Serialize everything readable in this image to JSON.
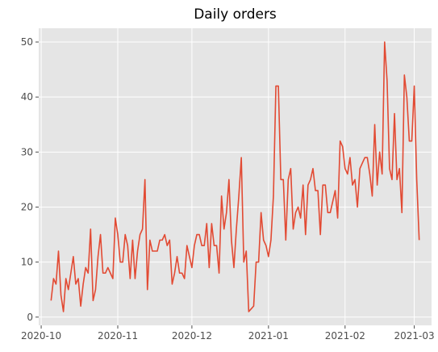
{
  "colors": {
    "plot_background": "#e5e5e5",
    "grid": "#ffffff",
    "line": "#e24a33",
    "tick_text": "#4d4d4d"
  },
  "chart_data": {
    "type": "line",
    "title": "Daily orders",
    "xlabel": "",
    "ylabel": "",
    "grid": true,
    "x_axis": {
      "type": "date",
      "range": [
        "2020-09-30",
        "2021-03-08"
      ],
      "ticks": [
        {
          "date": "2020-10-01",
          "label": "2020-10"
        },
        {
          "date": "2020-11-01",
          "label": "2020-11"
        },
        {
          "date": "2020-12-01",
          "label": "2020-12"
        },
        {
          "date": "2021-01-01",
          "label": "2021-01"
        },
        {
          "date": "2021-02-01",
          "label": "2021-02"
        },
        {
          "date": "2021-03-01",
          "label": "2021-03"
        }
      ]
    },
    "y_axis": {
      "range": [
        -1.5,
        52.5
      ],
      "ticks": [
        0,
        10,
        20,
        30,
        40,
        50
      ]
    },
    "start_date": "2020-10-05",
    "x": [
      "2020-10-05",
      "2020-10-06",
      "2020-10-07",
      "2020-10-08",
      "2020-10-09",
      "2020-10-10",
      "2020-10-11",
      "2020-10-12",
      "2020-10-13",
      "2020-10-14",
      "2020-10-15",
      "2020-10-16",
      "2020-10-17",
      "2020-10-18",
      "2020-10-19",
      "2020-10-20",
      "2020-10-21",
      "2020-10-22",
      "2020-10-23",
      "2020-10-24",
      "2020-10-25",
      "2020-10-26",
      "2020-10-27",
      "2020-10-28",
      "2020-10-29",
      "2020-10-30",
      "2020-10-31",
      "2020-11-01",
      "2020-11-02",
      "2020-11-03",
      "2020-11-04",
      "2020-11-05",
      "2020-11-06",
      "2020-11-07",
      "2020-11-08",
      "2020-11-09",
      "2020-11-10",
      "2020-11-11",
      "2020-11-12",
      "2020-11-13",
      "2020-11-14",
      "2020-11-15",
      "2020-11-16",
      "2020-11-17",
      "2020-11-18",
      "2020-11-19",
      "2020-11-20",
      "2020-11-21",
      "2020-11-22",
      "2020-11-23",
      "2020-11-24",
      "2020-11-25",
      "2020-11-26",
      "2020-11-27",
      "2020-11-28",
      "2020-11-29",
      "2020-11-30",
      "2020-12-01",
      "2020-12-02",
      "2020-12-03",
      "2020-12-04",
      "2020-12-05",
      "2020-12-06",
      "2020-12-07",
      "2020-12-08",
      "2020-12-09",
      "2020-12-10",
      "2020-12-11",
      "2020-12-12",
      "2020-12-13",
      "2020-12-14",
      "2020-12-15",
      "2020-12-16",
      "2020-12-17",
      "2020-12-18",
      "2020-12-19",
      "2020-12-20",
      "2020-12-21",
      "2020-12-22",
      "2020-12-23",
      "2020-12-24",
      "2020-12-25",
      "2020-12-26",
      "2020-12-27",
      "2020-12-28",
      "2020-12-29",
      "2020-12-30",
      "2020-12-31",
      "2021-01-01",
      "2021-01-02",
      "2021-01-03",
      "2021-01-04",
      "2021-01-05",
      "2021-01-06",
      "2021-01-07",
      "2021-01-08",
      "2021-01-09",
      "2021-01-10",
      "2021-01-11",
      "2021-01-12",
      "2021-01-13",
      "2021-01-14",
      "2021-01-15",
      "2021-01-16",
      "2021-01-17",
      "2021-01-18",
      "2021-01-19",
      "2021-01-20",
      "2021-01-21",
      "2021-01-22",
      "2021-01-23",
      "2021-01-24",
      "2021-01-25",
      "2021-01-26",
      "2021-01-27",
      "2021-01-28",
      "2021-01-29",
      "2021-01-30",
      "2021-01-31",
      "2021-02-01",
      "2021-02-02",
      "2021-02-03",
      "2021-02-04",
      "2021-02-05",
      "2021-02-06",
      "2021-02-07",
      "2021-02-08",
      "2021-02-09",
      "2021-02-10",
      "2021-02-11",
      "2021-02-12",
      "2021-02-13",
      "2021-02-14",
      "2021-02-15",
      "2021-02-16",
      "2021-02-17",
      "2021-02-18",
      "2021-02-19",
      "2021-02-20",
      "2021-02-21",
      "2021-02-22",
      "2021-02-23",
      "2021-02-24",
      "2021-02-25",
      "2021-02-26",
      "2021-02-27",
      "2021-02-28",
      "2021-03-01",
      "2021-03-02",
      "2021-03-03"
    ],
    "series": [
      {
        "values": [
          3,
          7,
          6,
          12,
          4,
          1,
          7,
          5,
          8,
          11,
          6,
          7,
          2,
          6,
          9,
          8,
          16,
          3,
          5,
          11,
          15,
          8,
          8,
          9,
          8,
          7,
          18,
          15,
          10,
          10,
          15,
          13,
          7,
          14,
          7,
          12,
          15,
          16,
          25,
          5,
          14,
          12,
          12,
          12,
          14,
          14,
          15,
          13,
          14,
          6,
          8,
          11,
          8,
          8,
          7,
          13,
          11,
          9,
          13,
          15,
          15,
          13,
          13,
          17,
          9,
          17,
          13,
          13,
          8,
          22,
          16,
          19,
          25,
          14,
          9,
          16,
          22,
          29,
          10,
          12,
          1,
          1.5,
          2,
          10,
          10,
          19,
          14,
          13,
          11,
          14,
          22,
          42,
          42,
          25,
          25,
          14,
          25,
          27,
          16,
          19,
          20,
          18,
          24,
          15,
          24,
          25,
          27,
          23,
          23,
          15,
          24,
          24,
          19,
          19,
          21,
          23,
          18,
          32,
          31,
          27,
          26,
          29,
          24,
          25,
          20,
          27,
          28,
          29,
          29,
          26,
          22,
          35,
          24,
          30,
          26,
          50,
          43,
          27,
          25,
          37,
          25,
          27,
          19,
          44,
          40,
          32,
          32,
          42,
          25,
          14
        ]
      }
    ]
  }
}
